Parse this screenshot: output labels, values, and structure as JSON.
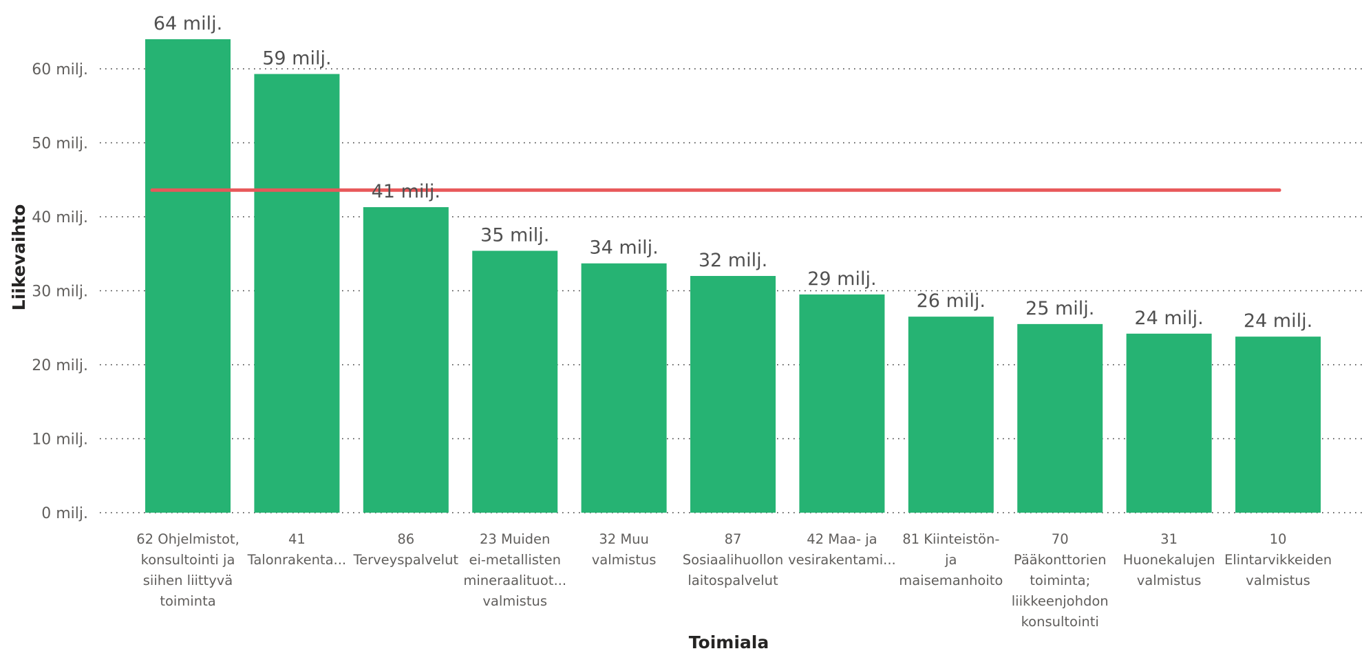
{
  "chart_data": {
    "type": "bar",
    "xlabel": "Toimiala",
    "ylabel": "Liikevaihto",
    "ylim": [
      0,
      60
    ],
    "y_ticks": [
      0,
      10,
      20,
      30,
      40,
      50,
      60
    ],
    "y_tick_labels": [
      "0 milj.",
      "10 milj.",
      "20 milj.",
      "30 milj.",
      "40 milj.",
      "50 milj.",
      "60 milj."
    ],
    "grid": true,
    "categories": [
      [
        "62 Ohjelmistot,",
        "konsultointi ja",
        "siihen liittyvä",
        "toiminta"
      ],
      [
        "41",
        "Talonrakenta..."
      ],
      [
        "86",
        "Terveyspalvelut"
      ],
      [
        "23 Muiden",
        "ei-metallisten",
        "mineraalituot...",
        "valmistus"
      ],
      [
        "32 Muu",
        "valmistus"
      ],
      [
        "87",
        "Sosiaalihuollon",
        "laitospalvelut"
      ],
      [
        "42 Maa- ja",
        "vesirakentami..."
      ],
      [
        "81 Kiinteistön-",
        "ja",
        "maisemanhoito"
      ],
      [
        "70",
        "Pääkonttorien",
        "toiminta;",
        "liikkeenjohdon",
        "konsultointi"
      ],
      [
        "31",
        "Huonekalujen",
        "valmistus"
      ],
      [
        "10",
        "Elintarvikkeiden",
        "valmistus"
      ]
    ],
    "values": [
      64,
      59.3,
      41.3,
      35.4,
      33.7,
      32,
      29.5,
      26.5,
      25.5,
      24.2,
      23.8
    ],
    "data_labels": [
      "64 milj.",
      "59 milj.",
      "41 milj.",
      "35 milj.",
      "34 milj.",
      "32 milj.",
      "29 milj.",
      "26 milj.",
      "25 milj.",
      "24 milj.",
      "24 milj."
    ],
    "reference_line": {
      "value": 43.6
    },
    "colors": {
      "bar": "#26b373",
      "reference_line": "#e8585a",
      "grid": "#333333"
    }
  }
}
